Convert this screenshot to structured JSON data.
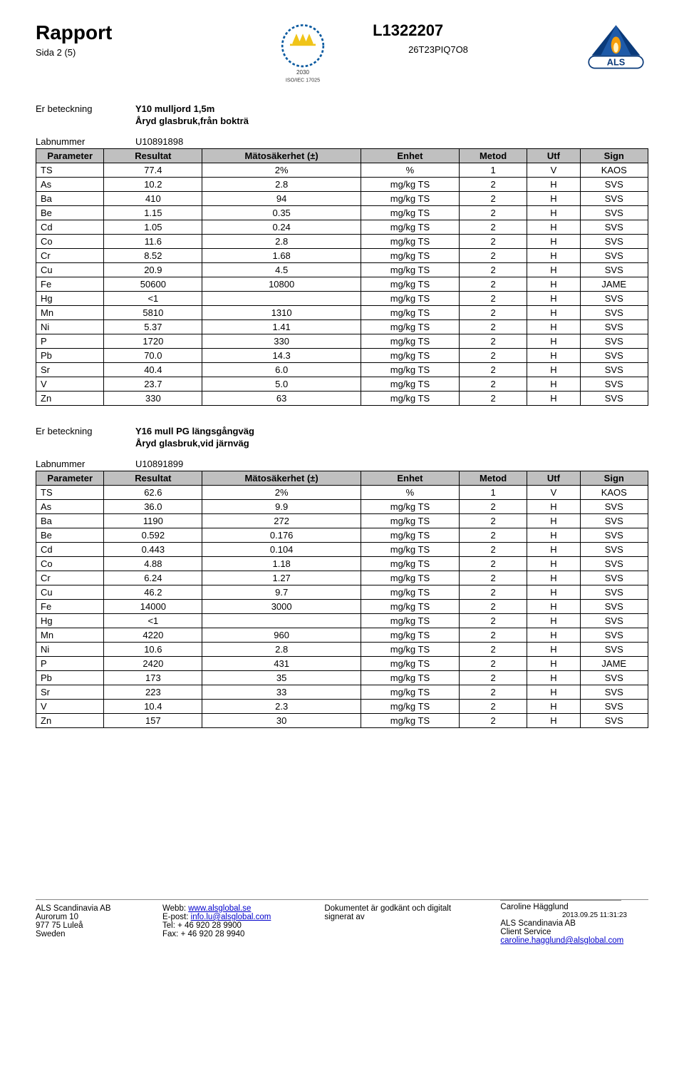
{
  "header": {
    "title": "Rapport",
    "page": "Sida 2 (5)",
    "report_id": "L1322207",
    "sample_code": "26T23PIQ7O8",
    "swedac_caption1": "2030",
    "swedac_caption2": "ISO/IEC 17025",
    "als_label": "ALS"
  },
  "colors": {
    "header_bg": "#c0c0c0",
    "border": "#000000",
    "link": "#0000cc",
    "swedac_crown": "#f0c419",
    "swedac_text": "#0a5aa0",
    "als_triangle": "#0a3a7a",
    "als_flame": "#f59e0b"
  },
  "section1": {
    "er_label": "Er beteckning",
    "er_val1": "Y10 mulljord 1,5m",
    "er_val2": "Åryd glasbruk,från bokträ",
    "lab_label": "Labnummer",
    "lab_val": "U10891898",
    "headers": [
      "Parameter",
      "Resultat",
      "Mätosäkerhet (±)",
      "Enhet",
      "Metod",
      "Utf",
      "Sign"
    ],
    "rows": [
      [
        "TS",
        "77.4",
        "2%",
        "%",
        "1",
        "V",
        "KAOS"
      ],
      [
        "As",
        "10.2",
        "2.8",
        "mg/kg TS",
        "2",
        "H",
        "SVS"
      ],
      [
        "Ba",
        "410",
        "94",
        "mg/kg TS",
        "2",
        "H",
        "SVS"
      ],
      [
        "Be",
        "1.15",
        "0.35",
        "mg/kg TS",
        "2",
        "H",
        "SVS"
      ],
      [
        "Cd",
        "1.05",
        "0.24",
        "mg/kg TS",
        "2",
        "H",
        "SVS"
      ],
      [
        "Co",
        "11.6",
        "2.8",
        "mg/kg TS",
        "2",
        "H",
        "SVS"
      ],
      [
        "Cr",
        "8.52",
        "1.68",
        "mg/kg TS",
        "2",
        "H",
        "SVS"
      ],
      [
        "Cu",
        "20.9",
        "4.5",
        "mg/kg TS",
        "2",
        "H",
        "SVS"
      ],
      [
        "Fe",
        "50600",
        "10800",
        "mg/kg TS",
        "2",
        "H",
        "JAME"
      ],
      [
        "Hg",
        "<1",
        "",
        "mg/kg TS",
        "2",
        "H",
        "SVS"
      ],
      [
        "Mn",
        "5810",
        "1310",
        "mg/kg TS",
        "2",
        "H",
        "SVS"
      ],
      [
        "Ni",
        "5.37",
        "1.41",
        "mg/kg TS",
        "2",
        "H",
        "SVS"
      ],
      [
        "P",
        "1720",
        "330",
        "mg/kg TS",
        "2",
        "H",
        "SVS"
      ],
      [
        "Pb",
        "70.0",
        "14.3",
        "mg/kg TS",
        "2",
        "H",
        "SVS"
      ],
      [
        "Sr",
        "40.4",
        "6.0",
        "mg/kg TS",
        "2",
        "H",
        "SVS"
      ],
      [
        "V",
        "23.7",
        "5.0",
        "mg/kg TS",
        "2",
        "H",
        "SVS"
      ],
      [
        "Zn",
        "330",
        "63",
        "mg/kg TS",
        "2",
        "H",
        "SVS"
      ]
    ]
  },
  "section2": {
    "er_label": "Er beteckning",
    "er_val1": "Y16 mull PG längsgångväg",
    "er_val2": "Åryd glasbruk,vid järnväg",
    "lab_label": "Labnummer",
    "lab_val": "U10891899",
    "headers": [
      "Parameter",
      "Resultat",
      "Mätosäkerhet (±)",
      "Enhet",
      "Metod",
      "Utf",
      "Sign"
    ],
    "rows": [
      [
        "TS",
        "62.6",
        "2%",
        "%",
        "1",
        "V",
        "KAOS"
      ],
      [
        "As",
        "36.0",
        "9.9",
        "mg/kg TS",
        "2",
        "H",
        "SVS"
      ],
      [
        "Ba",
        "1190",
        "272",
        "mg/kg TS",
        "2",
        "H",
        "SVS"
      ],
      [
        "Be",
        "0.592",
        "0.176",
        "mg/kg TS",
        "2",
        "H",
        "SVS"
      ],
      [
        "Cd",
        "0.443",
        "0.104",
        "mg/kg TS",
        "2",
        "H",
        "SVS"
      ],
      [
        "Co",
        "4.88",
        "1.18",
        "mg/kg TS",
        "2",
        "H",
        "SVS"
      ],
      [
        "Cr",
        "6.24",
        "1.27",
        "mg/kg TS",
        "2",
        "H",
        "SVS"
      ],
      [
        "Cu",
        "46.2",
        "9.7",
        "mg/kg TS",
        "2",
        "H",
        "SVS"
      ],
      [
        "Fe",
        "14000",
        "3000",
        "mg/kg TS",
        "2",
        "H",
        "SVS"
      ],
      [
        "Hg",
        "<1",
        "",
        "mg/kg TS",
        "2",
        "H",
        "SVS"
      ],
      [
        "Mn",
        "4220",
        "960",
        "mg/kg TS",
        "2",
        "H",
        "SVS"
      ],
      [
        "Ni",
        "10.6",
        "2.8",
        "mg/kg TS",
        "2",
        "H",
        "SVS"
      ],
      [
        "P",
        "2420",
        "431",
        "mg/kg TS",
        "2",
        "H",
        "JAME"
      ],
      [
        "Pb",
        "173",
        "35",
        "mg/kg TS",
        "2",
        "H",
        "SVS"
      ],
      [
        "Sr",
        "223",
        "33",
        "mg/kg TS",
        "2",
        "H",
        "SVS"
      ],
      [
        "V",
        "10.4",
        "2.3",
        "mg/kg TS",
        "2",
        "H",
        "SVS"
      ],
      [
        "Zn",
        "157",
        "30",
        "mg/kg TS",
        "2",
        "H",
        "SVS"
      ]
    ]
  },
  "footer": {
    "a": [
      "ALS Scandinavia AB",
      "Aurorum 10",
      "977 75 Luleå",
      "Sweden"
    ],
    "b_labels": [
      "Webb:",
      "E-post:",
      "Tel:",
      "Fax:"
    ],
    "b_vals": [
      "www.alsglobal.se",
      "info.lu@alsglobal.com",
      "+ 46 920 28 9900",
      "+ 46 920 28 9940"
    ],
    "c": [
      "Dokumentet är godkänt och digitalt",
      "signerat av"
    ],
    "d_name": "Caroline Hägglund",
    "d_ts": "2013.09.25 11:31:23",
    "d_co": "ALS Scandinavia AB",
    "d_svc": "Client Service",
    "d_email": "caroline.hagglund@alsglobal.com"
  }
}
